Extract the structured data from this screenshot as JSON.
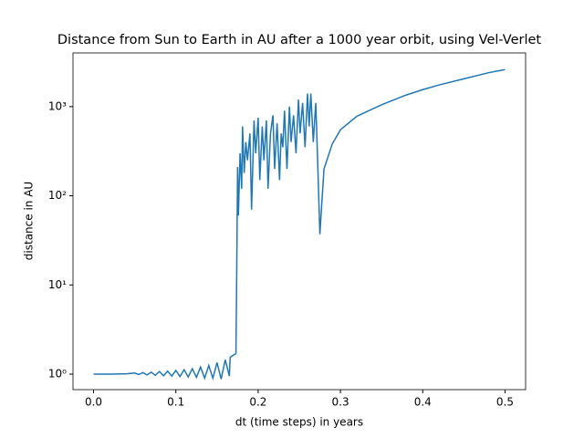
{
  "chart_data": {
    "type": "line",
    "title": "Distance from Sun to Earth in AU after a 1000 year orbit, using Vel-Verlet",
    "x_label": "dt (time steps) in years",
    "y_label": "distance in AU",
    "log_y": true,
    "xlim": [
      -0.025,
      0.525
    ],
    "xticks": [
      {
        "value": 0,
        "label": "0.0"
      },
      0.1,
      0.2,
      0.3,
      0.4,
      0.5
    ],
    "ylim": [
      0.67,
      4000
    ],
    "yticks": [
      {
        "value": 1,
        "label": "10⁰"
      },
      {
        "value": 10,
        "label": "10¹"
      },
      {
        "value": 100,
        "label": "10²"
      },
      {
        "value": 1000,
        "label": "10³"
      }
    ],
    "series": [
      {
        "color": "#1f77b4",
        "x": [
          0,
          0.02,
          0.04,
          0.05,
          0.055,
          0.06,
          0.065,
          0.07,
          0.075,
          0.08,
          0.085,
          0.09,
          0.095,
          0.1,
          0.105,
          0.11,
          0.115,
          0.12,
          0.125,
          0.13,
          0.135,
          0.14,
          0.145,
          0.15,
          0.155,
          0.16,
          0.165,
          0.166,
          0.173,
          0.174,
          0.175,
          0.176,
          0.178,
          0.18,
          0.181,
          0.183,
          0.185,
          0.187,
          0.19,
          0.192,
          0.195,
          0.197,
          0.2,
          0.202,
          0.205,
          0.207,
          0.21,
          0.212,
          0.215,
          0.218,
          0.22,
          0.223,
          0.226,
          0.228,
          0.23,
          0.232,
          0.235,
          0.238,
          0.24,
          0.243,
          0.246,
          0.249,
          0.251,
          0.254,
          0.257,
          0.26,
          0.262,
          0.264,
          0.267,
          0.27,
          0.272,
          0.275,
          0.28,
          0.29,
          0.3,
          0.32,
          0.35,
          0.38,
          0.4,
          0.42,
          0.45,
          0.48,
          0.5
        ],
        "values": [
          1.0,
          1.0,
          1.01,
          1.03,
          0.99,
          1.04,
          0.98,
          1.05,
          0.97,
          1.07,
          0.96,
          1.08,
          0.95,
          1.1,
          0.94,
          1.12,
          0.93,
          1.15,
          0.92,
          1.2,
          0.9,
          1.25,
          0.9,
          1.35,
          0.88,
          1.45,
          0.95,
          1.55,
          1.7,
          15,
          210,
          60,
          300,
          120,
          600,
          180,
          400,
          250,
          500,
          70,
          700,
          300,
          750,
          150,
          600,
          250,
          700,
          120,
          500,
          800,
          200,
          650,
          150,
          500,
          350,
          900,
          200,
          1000,
          400,
          800,
          300,
          1200,
          500,
          1100,
          350,
          1400,
          600,
          1400,
          400,
          1100,
          300,
          37,
          200,
          380,
          550,
          780,
          1050,
          1350,
          1550,
          1750,
          2050,
          2400,
          2600
        ]
      }
    ]
  }
}
